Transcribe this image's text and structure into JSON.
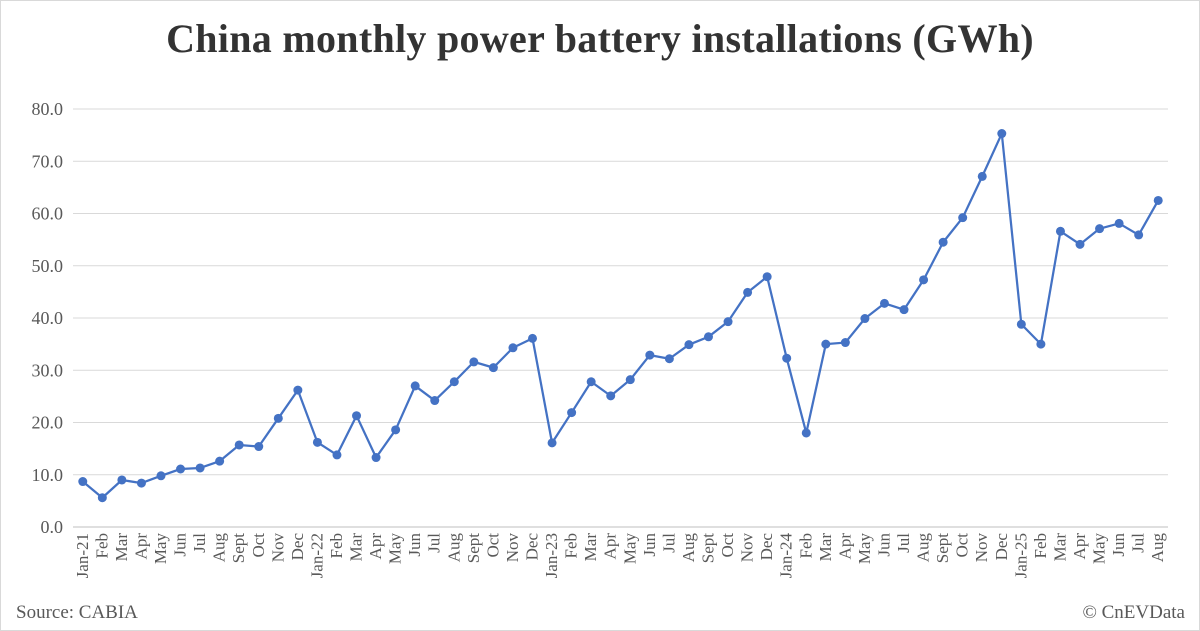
{
  "chart_data": {
    "type": "line",
    "title": "China monthly power battery installations (GWh)",
    "xlabel": "",
    "ylabel": "",
    "ylim": [
      0,
      80
    ],
    "yticks": [
      "0.0",
      "10.0",
      "20.0",
      "30.0",
      "40.0",
      "50.0",
      "60.0",
      "70.0",
      "80.0"
    ],
    "grid": true,
    "legend": "none",
    "line_color": "#4472C4",
    "categories": [
      "Jan-21",
      "Feb",
      "Mar",
      "Apr",
      "May",
      "Jun",
      "Jul",
      "Aug",
      "Sept",
      "Oct",
      "Nov",
      "Dec",
      "Jan-22",
      "Feb",
      "Mar",
      "Apr",
      "May",
      "Jun",
      "Jul",
      "Aug",
      "Sept",
      "Oct",
      "Nov",
      "Dec",
      "Jan-23",
      "Feb",
      "Mar",
      "Apr",
      "May",
      "Jun",
      "Jul",
      "Aug",
      "Sept",
      "Oct",
      "Nov",
      "Dec",
      "Jan-24",
      "Feb",
      "Mar",
      "Apr",
      "May",
      "Jun",
      "Jul",
      "Aug",
      "Sept",
      "Oct",
      "Nov",
      "Dec",
      "Jan-25",
      "Feb",
      "Mar",
      "Apr",
      "May",
      "Jun",
      "Jul",
      "Aug"
    ],
    "series": [
      {
        "values": [
          8.7,
          5.6,
          9.0,
          8.4,
          9.8,
          11.1,
          11.3,
          12.6,
          15.7,
          15.4,
          20.8,
          26.2,
          16.2,
          13.8,
          21.3,
          13.3,
          18.6,
          27.0,
          24.2,
          27.8,
          31.6,
          30.5,
          34.3,
          36.1,
          16.1,
          21.9,
          27.8,
          25.1,
          28.2,
          32.9,
          32.2,
          34.9,
          36.4,
          39.3,
          44.9,
          47.9,
          32.3,
          18.0,
          35.0,
          35.3,
          39.9,
          42.8,
          41.6,
          47.3,
          54.5,
          59.2,
          67.1,
          75.3,
          38.8,
          35.0,
          56.6,
          54.1,
          57.1,
          58.1,
          55.9,
          62.5
        ]
      }
    ]
  },
  "footer": {
    "source": "Source: CABIA",
    "copyright": "© CnEVData"
  }
}
